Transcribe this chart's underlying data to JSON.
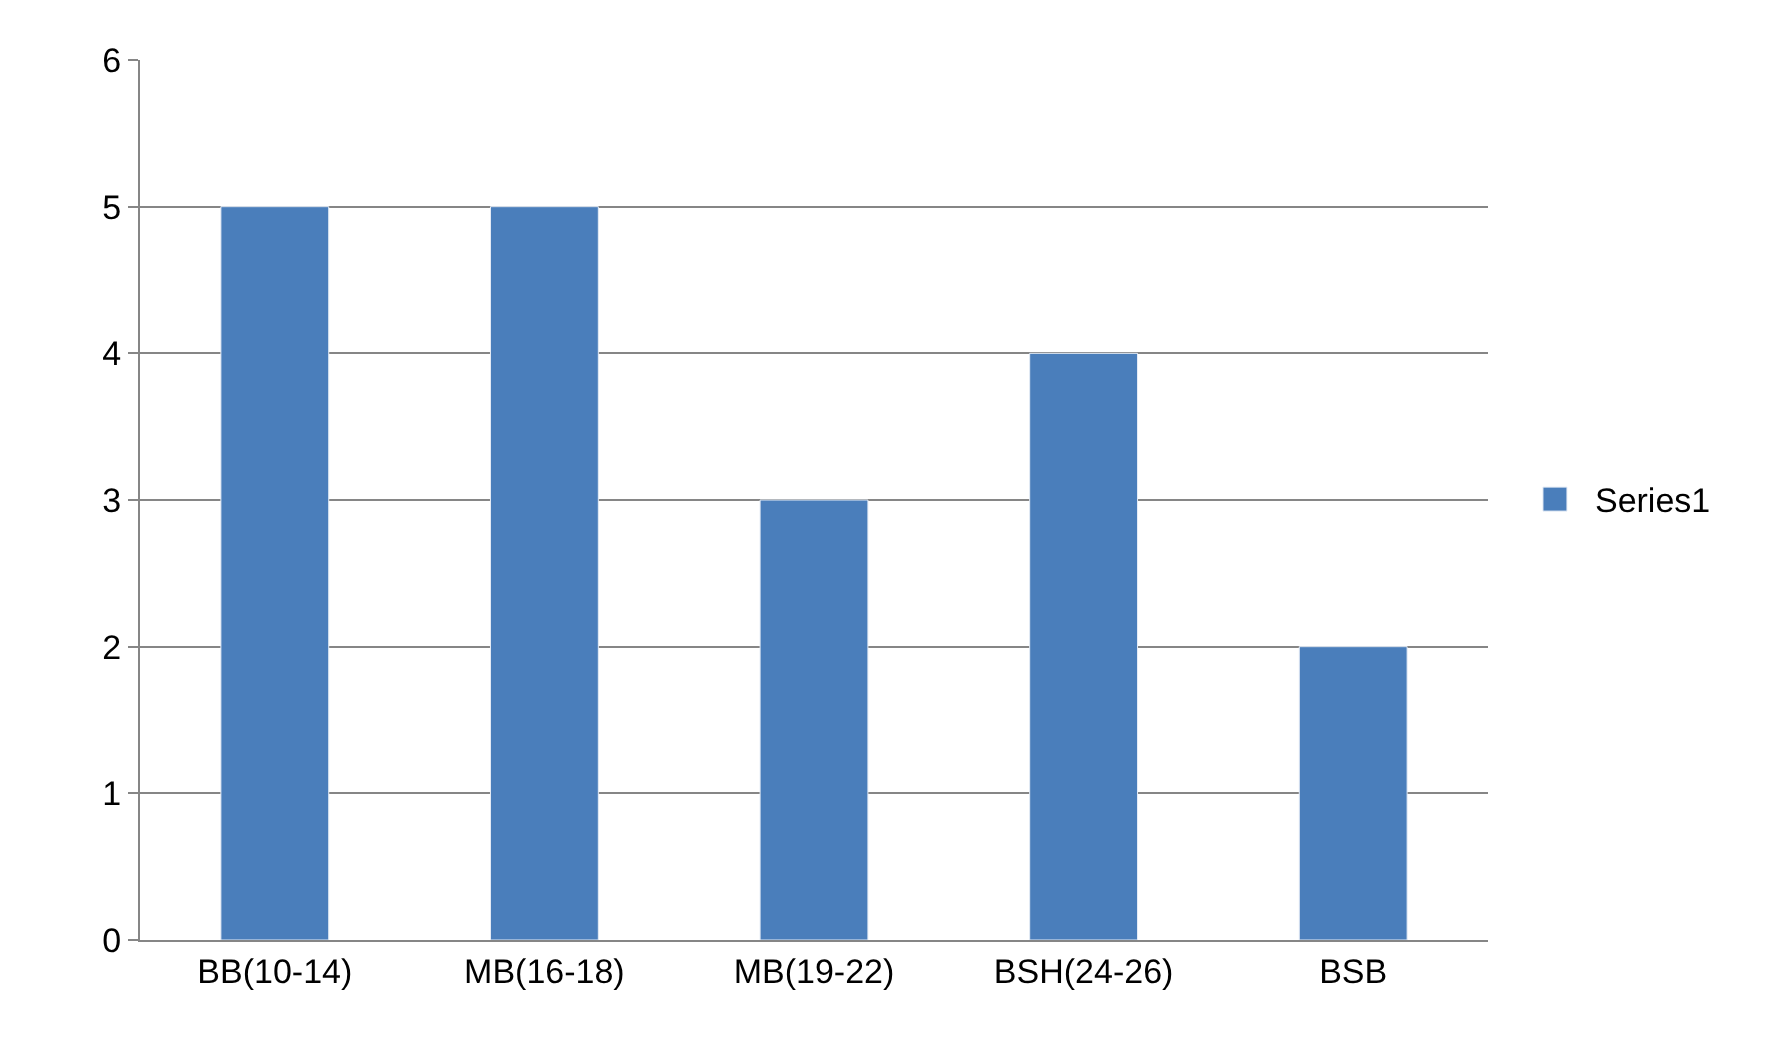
{
  "chart_data": {
    "type": "bar",
    "categories": [
      "BB(10-14)",
      "MB(16-18)",
      "MB(19-22)",
      "BSH(24-26)",
      "BSB"
    ],
    "series": [
      {
        "name": "Series1",
        "color": "#4a7ebb",
        "values": [
          5,
          5,
          3,
          4,
          2
        ]
      }
    ],
    "ylim": [
      0,
      6
    ],
    "yticks": [
      0,
      1,
      2,
      3,
      4,
      5,
      6
    ],
    "grid": "y",
    "legend": "right"
  }
}
